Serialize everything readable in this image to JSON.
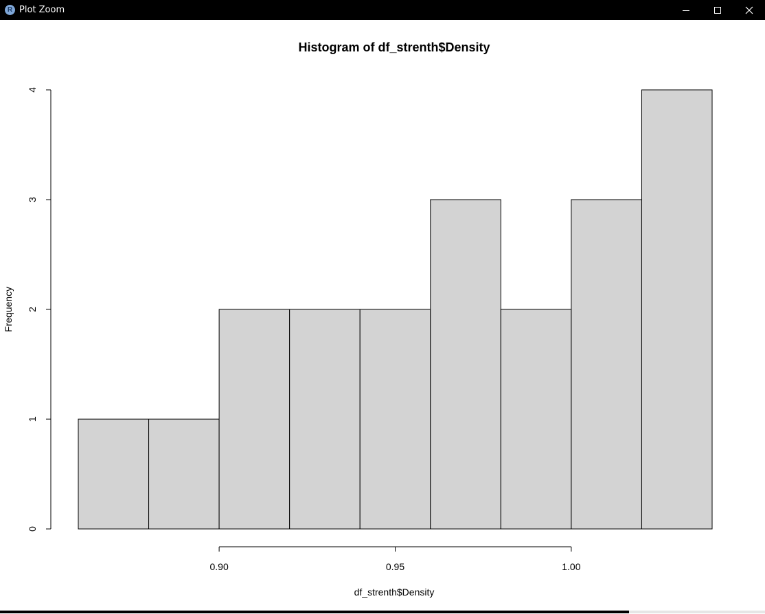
{
  "window": {
    "title": "Plot Zoom",
    "icon_letter": "R",
    "controls": [
      "minimize-icon",
      "maximize-icon",
      "close-icon"
    ]
  },
  "chart_data": {
    "type": "bar",
    "title": "Histogram of df_strenth$Density",
    "xlabel": "df_strenth$Density",
    "ylabel": "Frequency",
    "breaks": [
      0.86,
      0.88,
      0.9,
      0.92,
      0.94,
      0.96,
      0.98,
      1.0,
      1.02,
      1.04
    ],
    "counts": [
      1,
      1,
      2,
      2,
      2,
      3,
      2,
      3,
      4
    ],
    "xlim": [
      0.86,
      1.04
    ],
    "ylim": [
      0,
      4
    ],
    "x_ticks": [
      0.9,
      0.95,
      1.0
    ],
    "x_tick_labels": [
      "0.90",
      "0.95",
      "1.00"
    ],
    "y_ticks": [
      0,
      1,
      2,
      3,
      4
    ],
    "y_tick_labels": [
      "0",
      "1",
      "2",
      "3",
      "4"
    ],
    "bar_fill": "#d3d3d3",
    "bar_stroke": "#000000",
    "grid": false
  }
}
